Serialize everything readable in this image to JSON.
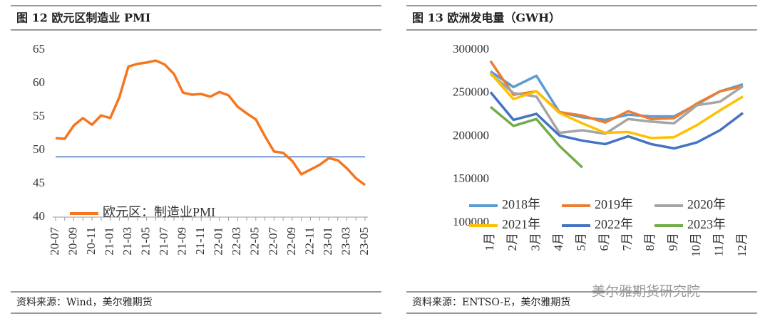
{
  "chart_data": [
    {
      "type": "line",
      "title": "图 12   欧元区制造业 PMI",
      "source": "资料来源：Wind，美尔雅期货",
      "categories": [
        "20-07",
        null,
        "20-09",
        null,
        "20-11",
        null,
        "21-01",
        null,
        "21-03",
        null,
        "21-05",
        null,
        "21-07",
        null,
        "21-09",
        null,
        "21-11",
        null,
        "22-01",
        null,
        "22-03",
        null,
        "22-05",
        null,
        "22-07",
        null,
        "22-09",
        null,
        "22-11",
        null,
        "23-01",
        null,
        "23-03",
        null,
        "23-05"
      ],
      "series": [
        {
          "name": "欧元区：制造业PMI",
          "color": "#f5761f",
          "values": [
            51.8,
            51.7,
            53.7,
            54.8,
            53.8,
            55.2,
            54.8,
            57.9,
            62.5,
            62.9,
            63.1,
            63.4,
            62.8,
            61.4,
            58.6,
            58.3,
            58.4,
            58.0,
            58.7,
            58.2,
            56.5,
            55.5,
            54.6,
            52.1,
            49.8,
            49.6,
            48.4,
            46.4,
            47.1,
            47.8,
            48.8,
            48.5,
            47.3,
            45.8,
            44.8
          ]
        }
      ],
      "reference_line": 49,
      "reference_color": "#4472c4",
      "ylim": [
        40,
        65
      ],
      "yticks": [
        40,
        45,
        50,
        55,
        60,
        65
      ]
    },
    {
      "type": "line",
      "title": "图 13   欧洲发电量（GWH）",
      "source": "资料来源：ENTSO-E，美尔雅期货",
      "watermark": "美尔雅期货研究院",
      "categories": [
        "1月",
        "2月",
        "3月",
        "4月",
        "5月",
        "6月",
        "7月",
        "8月",
        "9月",
        "10月",
        "11月",
        "12月"
      ],
      "series": [
        {
          "name": "2018年",
          "color": "#5b9bd5",
          "values": [
            275000,
            257000,
            270000,
            228000,
            222000,
            219000,
            225000,
            223000,
            223000,
            237000,
            252000,
            260000
          ]
        },
        {
          "name": "2019年",
          "color": "#ed7d31",
          "values": [
            287000,
            248000,
            252000,
            228000,
            224000,
            216000,
            229000,
            220000,
            221000,
            238000,
            252000,
            258000
          ]
        },
        {
          "name": "2020年",
          "color": "#a5a5a5",
          "values": [
            272000,
            250000,
            246000,
            204000,
            207000,
            203000,
            220000,
            217000,
            215000,
            236000,
            240000,
            258000
          ]
        },
        {
          "name": "2021年",
          "color": "#ffc000",
          "values": [
            273000,
            243000,
            252000,
            227000,
            215000,
            204000,
            205000,
            198000,
            199000,
            213000,
            230000,
            246000
          ]
        },
        {
          "name": "2022年",
          "color": "#4472c4",
          "values": [
            251000,
            219000,
            226000,
            201000,
            195000,
            191000,
            200000,
            191000,
            186000,
            193000,
            207000,
            227000
          ]
        },
        {
          "name": "2023年",
          "color": "#70ad47",
          "values": [
            234000,
            212000,
            220000,
            189000,
            164000,
            null,
            null,
            null,
            null,
            null,
            null,
            null
          ]
        }
      ],
      "ylim": [
        100000,
        300000
      ],
      "yticks": [
        100000,
        150000,
        200000,
        250000,
        300000
      ]
    }
  ]
}
